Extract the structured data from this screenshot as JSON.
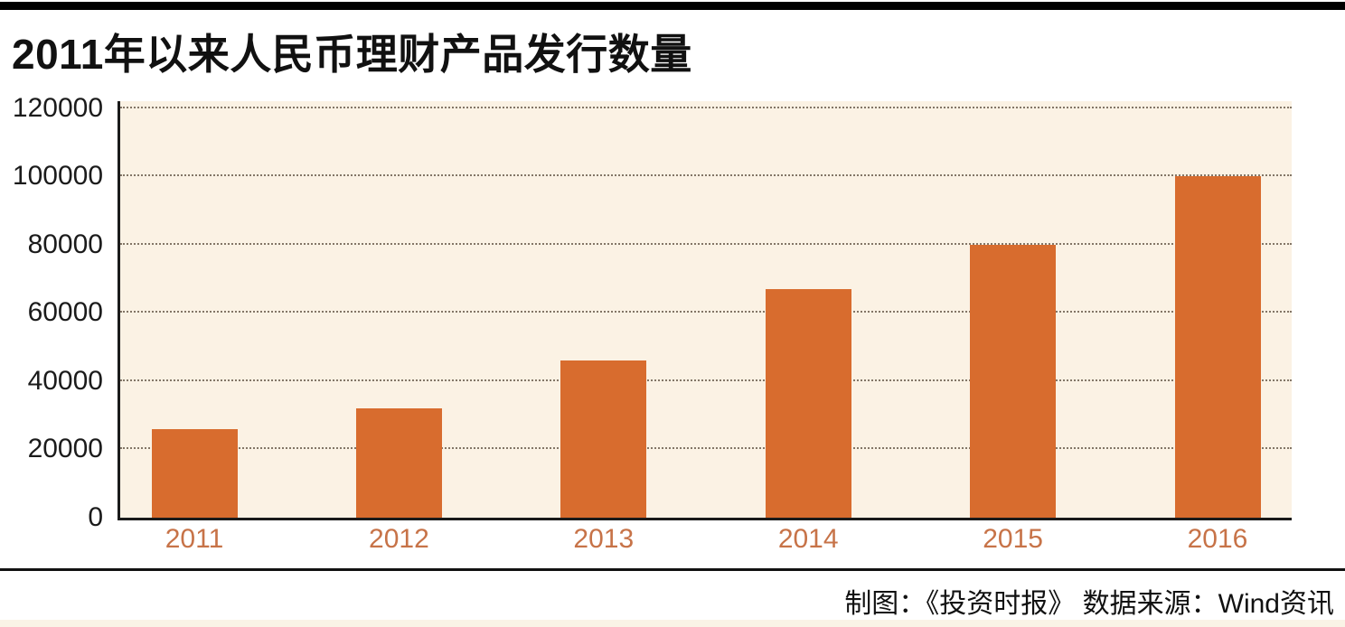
{
  "header": {
    "title": "2011年以来人民币理财产品发行数量"
  },
  "chart_data": {
    "type": "bar",
    "title": "2011年以来人民币理财产品发行数量",
    "categories": [
      "2011",
      "2012",
      "2013",
      "2014",
      "2015",
      "2016"
    ],
    "values": [
      26000,
      32000,
      46000,
      67000,
      80000,
      100000
    ],
    "xlabel": "",
    "ylabel": "",
    "ylim": [
      0,
      122000
    ],
    "yticks": [
      0,
      20000,
      40000,
      60000,
      80000,
      100000,
      120000
    ],
    "grid": "horizontal-dotted",
    "legend_position": "none",
    "colors": {
      "bar": "#d86c2e",
      "plot_background": "#fbf2e4",
      "x_tick_label": "#c77348",
      "axis": "#1a1a1a",
      "gridline": "#6f6152",
      "accent_bar": "#000000",
      "bottom_strip": "#faf3e6"
    }
  },
  "footer": {
    "credit": "制图：《投资时报》  数据来源：Wind资讯"
  }
}
